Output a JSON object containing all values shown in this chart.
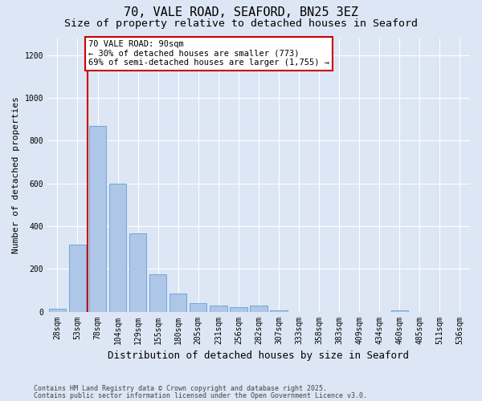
{
  "title_line1": "70, VALE ROAD, SEAFORD, BN25 3EZ",
  "title_line2": "Size of property relative to detached houses in Seaford",
  "xlabel": "Distribution of detached houses by size in Seaford",
  "ylabel": "Number of detached properties",
  "footer_line1": "Contains HM Land Registry data © Crown copyright and database right 2025.",
  "footer_line2": "Contains public sector information licensed under the Open Government Licence v3.0.",
  "bar_labels": [
    "28sqm",
    "53sqm",
    "78sqm",
    "104sqm",
    "129sqm",
    "155sqm",
    "180sqm",
    "205sqm",
    "231sqm",
    "256sqm",
    "282sqm",
    "307sqm",
    "333sqm",
    "358sqm",
    "383sqm",
    "409sqm",
    "434sqm",
    "460sqm",
    "485sqm",
    "511sqm",
    "536sqm"
  ],
  "bar_values": [
    15,
    315,
    870,
    600,
    365,
    175,
    85,
    40,
    28,
    22,
    28,
    5,
    0,
    0,
    0,
    0,
    0,
    5,
    0,
    0,
    0
  ],
  "bar_color": "#aec6e8",
  "bar_edge_color": "#6fa8d6",
  "vline_color": "#cc0000",
  "vline_xindex": 1.5,
  "annotation_text": "70 VALE ROAD: 90sqm\n← 30% of detached houses are smaller (773)\n69% of semi-detached houses are larger (1,755) →",
  "annotation_box_edgecolor": "#cc0000",
  "annotation_bg": "#ffffff",
  "ylim": [
    0,
    1280
  ],
  "yticks": [
    0,
    200,
    400,
    600,
    800,
    1000,
    1200
  ],
  "bg_color": "#dce6f4",
  "grid_color": "#ffffff",
  "title_fontsize": 11,
  "subtitle_fontsize": 9.5,
  "ylabel_fontsize": 8,
  "xlabel_fontsize": 9,
  "tick_fontsize": 7,
  "annotation_fontsize": 7.5,
  "footer_fontsize": 6
}
